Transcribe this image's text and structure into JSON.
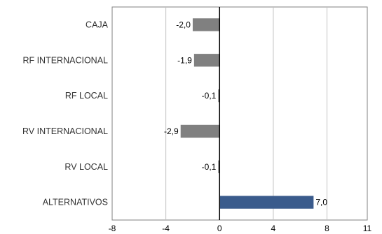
{
  "chart_data": {
    "type": "bar",
    "orientation": "horizontal",
    "categories": [
      "CAJA",
      "RF INTERNACIONAL",
      "RF LOCAL",
      "RV INTERNACIONAL",
      "RV LOCAL",
      "ALTERNATIVOS"
    ],
    "values": [
      -2.0,
      -1.9,
      -0.1,
      -2.9,
      -0.1,
      7.0
    ],
    "value_labels": [
      "-2,0",
      "-1,9",
      "-0,1",
      "-2,9",
      "-0,1",
      "7,0"
    ],
    "xlim": [
      -8,
      11
    ],
    "x_ticks": [
      -8,
      -4,
      0,
      4,
      8,
      11
    ],
    "x_tick_labels": [
      "-8",
      "-4",
      "0",
      "4",
      "8",
      "11"
    ],
    "grid": "vertical",
    "colors": {
      "negative": "#808080",
      "positive": "#3a5b8c",
      "grid": "#c0c0c0",
      "axis": "#000000",
      "text": "#333333"
    }
  }
}
